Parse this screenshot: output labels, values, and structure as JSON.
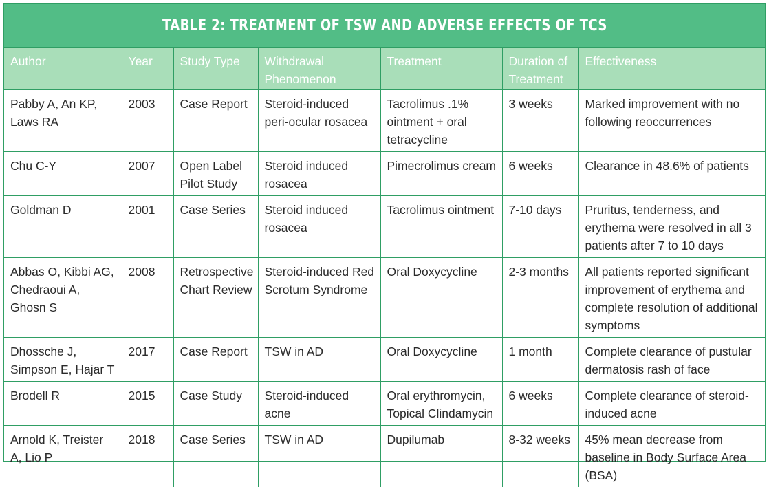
{
  "table": {
    "title": "TABLE 2: TREATMENT OF TSW AND ADVERSE EFFECTS OF TCS",
    "headers": [
      "Author",
      "Year",
      "Study Type",
      "Withdrawal Phenomenon",
      "Treatment",
      "Duration of Treatment",
      "Effectiveness"
    ],
    "rows": [
      [
        "Pabby A, An KP, Laws RA",
        "2003",
        "Case Report",
        "Steroid-induced peri-ocular rosacea",
        "Tacrolimus .1% ointment + oral tetracycline",
        "3 weeks",
        "Marked improvement with no following reoccurrences"
      ],
      [
        "Chu C-Y",
        "2007",
        "Open Label Pilot Study",
        "Steroid induced rosacea",
        "Pimecrolimus cream",
        "6 weeks",
        "Clearance in 48.6% of patients"
      ],
      [
        "Goldman D",
        "2001",
        "Case Series",
        "Steroid induced rosacea",
        "Tacrolimus ointment",
        "7-10 days",
        "Pruritus, tenderness, and erythema were resolved in all 3 patients after 7 to 10 days"
      ],
      [
        "Abbas O, Kibbi AG, Chedraoui A, Ghosn S",
        "2008",
        "Retrospective Chart Review",
        "Steroid-induced Red Scrotum Syndrome",
        "Oral Doxycycline",
        "2-3 months",
        "All patients reported significant improvement of erythema and complete resolution of additional symptoms"
      ],
      [
        "Dhossche J, Simpson E,  Hajar T",
        "2017",
        "Case Report",
        "TSW in AD",
        "Oral Doxycycline",
        "1 month",
        "Complete clearance of pustular dermatosis rash of face"
      ],
      [
        "Brodell R",
        "2015",
        "Case Study",
        "Steroid-induced acne",
        "Oral erythromycin, Topical Clindamycin",
        "6 weeks",
        "Complete clearance of steroid-induced acne"
      ],
      [
        "Arnold K, Treister A, Lio P",
        "2018",
        "Case Series",
        "TSW in AD",
        "Dupilumab",
        "8-32 weeks",
        "45% mean decrease from baseline in Body Surface Area (BSA)"
      ]
    ]
  },
  "colors": {
    "title_bg": "#52bd86",
    "header_bg": "#a9deb9",
    "border": "#2f9e64"
  }
}
